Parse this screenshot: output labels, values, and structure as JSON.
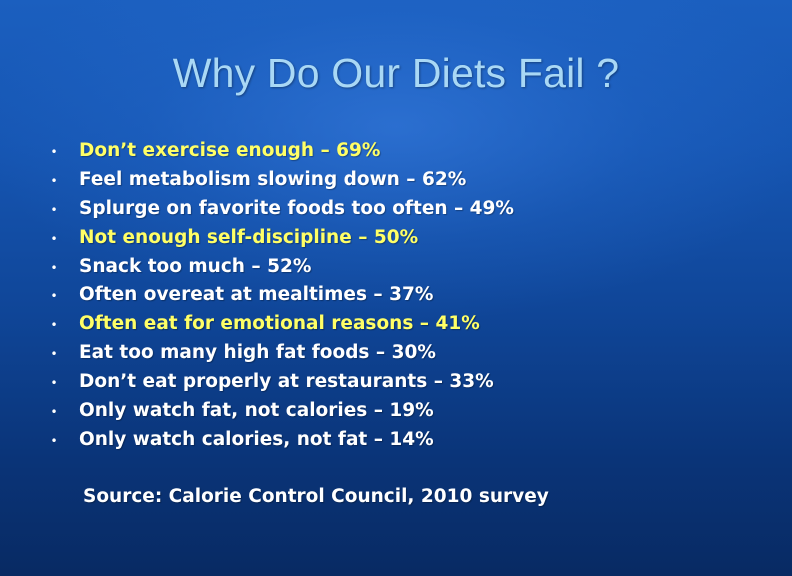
{
  "slide": {
    "title": "Why Do Our Diets Fail ?",
    "bullet_symbol": "•",
    "highlight_color": "#ffff66",
    "text_color": "#ffffff",
    "title_color": "#a9d8f5",
    "items": [
      {
        "text": "Don’t exercise enough – 69%",
        "highlight": true
      },
      {
        "text": "Feel metabolism slowing down – 62%",
        "highlight": false
      },
      {
        "text": "Splurge on favorite foods too often – 49%",
        "highlight": false
      },
      {
        "text": "Not enough self-discipline – 50%",
        "highlight": true
      },
      {
        "text": "Snack too much – 52%",
        "highlight": false
      },
      {
        "text": "Often overeat at mealtimes – 37%",
        "highlight": false
      },
      {
        "text": "Often eat for emotional reasons – 41%",
        "highlight": true
      },
      {
        "text": "Eat too many high fat foods – 30%",
        "highlight": false
      },
      {
        "text": "Don’t eat properly at restaurants – 33%",
        "highlight": false
      },
      {
        "text": "Only watch fat, not calories – 19%",
        "highlight": false
      },
      {
        "text": "Only watch calories, not fat – 14%",
        "highlight": false
      }
    ],
    "source": "Source: Calorie Control Council, 2010 survey"
  }
}
